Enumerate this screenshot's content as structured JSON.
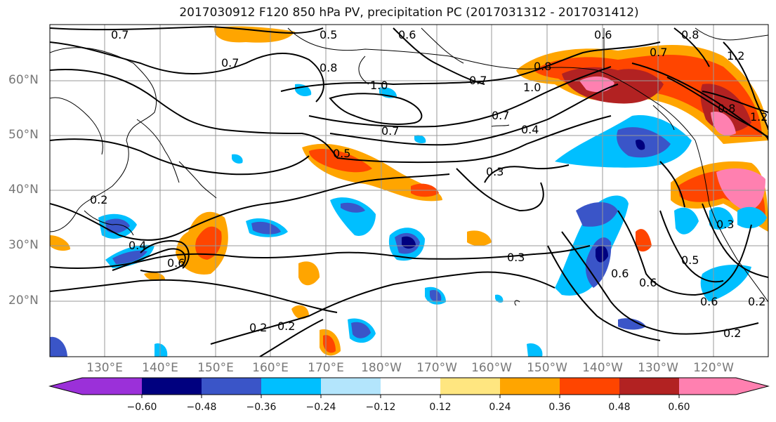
{
  "title": "2017030912 F120 850 hPa PV, precipitation PC (2017031312 - 2017031412)",
  "lat_labels": [
    "60°N",
    "50°N",
    "40°N",
    "30°N",
    "20°N"
  ],
  "lon_labels": [
    "130°E",
    "140°E",
    "150°E",
    "160°E",
    "170°E",
    "180°W",
    "170°W",
    "160°W",
    "150°W",
    "140°W",
    "130°W",
    "120°W"
  ],
  "colorbar": {
    "ticks": [
      "−0.60",
      "−0.48",
      "−0.36",
      "−0.24",
      "−0.12",
      "0.12",
      "0.24",
      "0.36",
      "0.48",
      "0.60"
    ],
    "colors": [
      "#9b30d9",
      "#00007f",
      "#3a55c8",
      "#00bfff",
      "#b3e5fc",
      "#ffffff",
      "#ffe680",
      "#ffa500",
      "#ff4500",
      "#b22222",
      "#ff80b0"
    ]
  },
  "contour_labels": [
    "0.7",
    "0.5",
    "0.6",
    "0.6",
    "0.8",
    "0.7",
    "0.8",
    "1.0",
    "0.7",
    "0.7",
    "0.5",
    "0.4",
    "0.3",
    "0.2",
    "0.4",
    "0.6",
    "0.3",
    "0.6",
    "0.5",
    "0.6",
    "0.2",
    "0.2",
    "0.2",
    "0.2",
    "1.2",
    "0.8",
    "0.7",
    "0.8",
    "1.0",
    "0.6",
    "0.3",
    "0.7",
    "1.2"
  ]
}
